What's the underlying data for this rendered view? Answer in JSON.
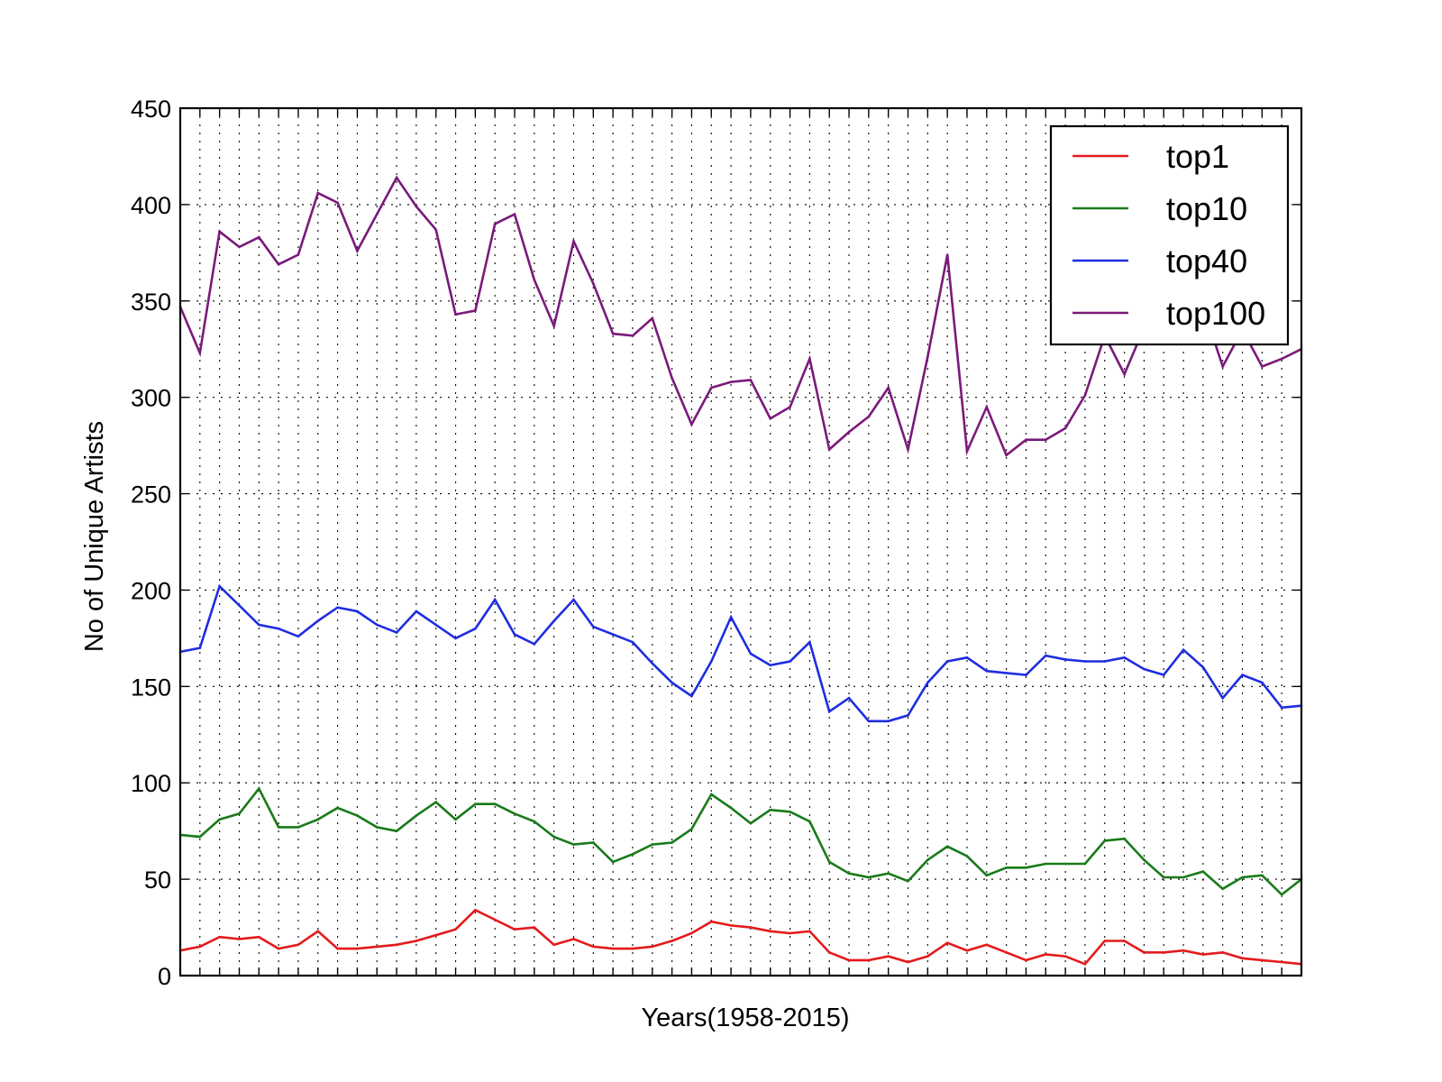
{
  "chart_data": {
    "type": "line",
    "title": "",
    "xlabel": "Years(1958-2015)",
    "ylabel": "No of Unique Artists",
    "x": [
      1958,
      1959,
      1960,
      1961,
      1962,
      1963,
      1964,
      1965,
      1966,
      1967,
      1968,
      1969,
      1970,
      1971,
      1972,
      1973,
      1974,
      1975,
      1976,
      1977,
      1978,
      1979,
      1980,
      1981,
      1982,
      1983,
      1984,
      1985,
      1986,
      1987,
      1988,
      1989,
      1990,
      1991,
      1992,
      1993,
      1994,
      1995,
      1996,
      1997,
      1998,
      1999,
      2000,
      2001,
      2002,
      2003,
      2004,
      2005,
      2006,
      2007,
      2008,
      2009,
      2010,
      2011,
      2012,
      2013,
      2014,
      2015
    ],
    "xlim": [
      1958,
      2015
    ],
    "ylim": [
      0,
      450
    ],
    "yticks": [
      0,
      50,
      100,
      150,
      200,
      250,
      300,
      350,
      400,
      450
    ],
    "yticklabels": [
      "0",
      "50",
      "100",
      "150",
      "200",
      "250",
      "300",
      "350",
      "400",
      "450"
    ],
    "grid": true,
    "legend_position": "top-right",
    "series": [
      {
        "name": "top1",
        "color": "#e41a1c",
        "values": [
          13,
          15,
          20,
          19,
          20,
          14,
          16,
          23,
          14,
          14,
          15,
          16,
          18,
          21,
          24,
          34,
          29,
          24,
          25,
          16,
          19,
          15,
          14,
          14,
          15,
          18,
          22,
          28,
          26,
          25,
          23,
          22,
          23,
          12,
          8,
          8,
          10,
          7,
          10,
          17,
          13,
          16,
          12,
          8,
          11,
          10,
          6,
          18,
          18,
          12,
          12,
          13,
          11,
          12,
          9,
          8,
          7,
          6
        ]
      },
      {
        "name": "top10",
        "color": "#1a7a1a",
        "values": [
          73,
          72,
          81,
          84,
          97,
          77,
          77,
          81,
          87,
          83,
          77,
          75,
          83,
          90,
          81,
          89,
          89,
          84,
          80,
          72,
          68,
          69,
          59,
          63,
          68,
          69,
          76,
          94,
          87,
          79,
          86,
          85,
          80,
          59,
          53,
          51,
          53,
          49,
          60,
          67,
          62,
          52,
          56,
          56,
          58,
          58,
          58,
          70,
          71,
          60,
          51,
          51,
          54,
          45,
          51,
          52,
          42,
          50
        ]
      },
      {
        "name": "top40",
        "color": "#1f2de0",
        "values": [
          168,
          170,
          202,
          192,
          182,
          180,
          176,
          184,
          191,
          189,
          182,
          178,
          189,
          182,
          175,
          180,
          195,
          177,
          172,
          184,
          195,
          181,
          177,
          173,
          162,
          152,
          145,
          163,
          186,
          167,
          161,
          163,
          173,
          137,
          144,
          132,
          132,
          135,
          152,
          163,
          165,
          158,
          157,
          156,
          166,
          164,
          163,
          163,
          165,
          159,
          156,
          169,
          160,
          144,
          156,
          152,
          139,
          140
        ]
      },
      {
        "name": "top100",
        "color": "#7a1a7a",
        "values": [
          347,
          323,
          386,
          378,
          383,
          369,
          374,
          406,
          401,
          376,
          395,
          414,
          399,
          387,
          343,
          345,
          390,
          395,
          361,
          337,
          381,
          359,
          333,
          332,
          341,
          310,
          286,
          305,
          308,
          309,
          289,
          295,
          320,
          273,
          282,
          290,
          305,
          273,
          321,
          374,
          272,
          295,
          270,
          278,
          278,
          284,
          301,
          332,
          312,
          336,
          353,
          338,
          347,
          316,
          335,
          316,
          320,
          325
        ]
      }
    ]
  }
}
